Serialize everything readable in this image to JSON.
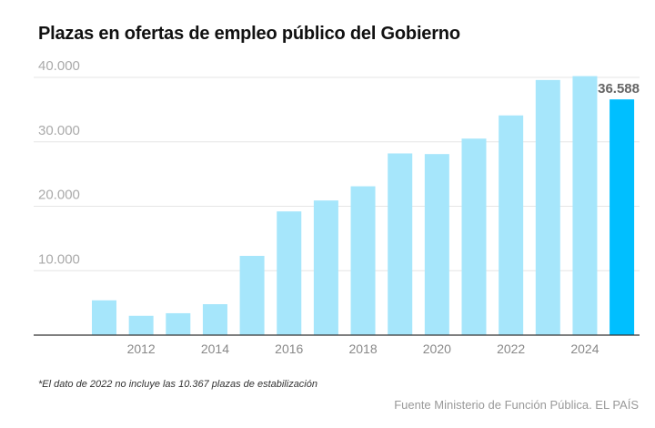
{
  "chart_data": {
    "type": "bar",
    "title": "Plazas en ofertas de empleo público del Gobierno",
    "categories": [
      "2011",
      "2012",
      "2013",
      "2014",
      "2015",
      "2016",
      "2017",
      "2018",
      "2019",
      "2020",
      "2021",
      "2022",
      "2023",
      "2024",
      "2025"
    ],
    "values": [
      5400,
      3000,
      3400,
      4800,
      12300,
      19200,
      20900,
      23100,
      28200,
      28100,
      30500,
      34100,
      39600,
      40200,
      36588
    ],
    "xticks": [
      "2012",
      "2014",
      "2016",
      "2018",
      "2020",
      "2022",
      "2024"
    ],
    "yticks": [
      10000,
      20000,
      30000,
      40000
    ],
    "ytick_labels": [
      "10.000",
      "20.000",
      "30.000",
      "40.000"
    ],
    "ylim": [
      0,
      40000
    ],
    "xlabel": "",
    "ylabel": "",
    "highlight_label": "36.588",
    "colors": {
      "bar": "#a6e6fb",
      "highlight": "#00bfff",
      "grid": "#e5e5e5"
    }
  },
  "note": "*El dato de 2022 no incluye las 10.367 plazas de estabilización",
  "source": "Fuente Ministerio de Función Pública. EL PAÍS"
}
